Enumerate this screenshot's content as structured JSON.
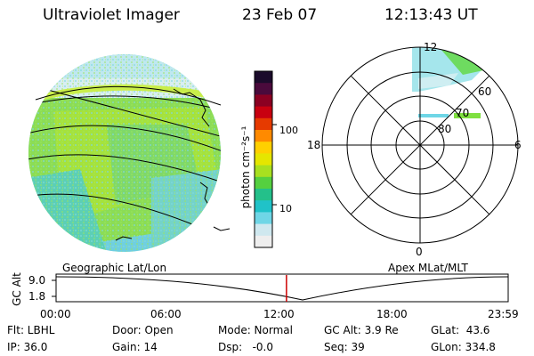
{
  "header": {
    "instrument": "Ultraviolet Imager",
    "date": "23 Feb 07",
    "time": "12:13:43 UT"
  },
  "colorbar": {
    "label": "photon cm⁻²s⁻¹",
    "ticks": [
      "100",
      "10"
    ],
    "colors": [
      "#1b0b2b",
      "#4a0a3c",
      "#8b0022",
      "#c80010",
      "#e63a00",
      "#ff8a00",
      "#ffd000",
      "#e5e600",
      "#a8e020",
      "#55d040",
      "#24c08a",
      "#20c2c8",
      "#6fd6e6",
      "#cfe8ef",
      "#eeeeee"
    ]
  },
  "polar": {
    "mlt_labels": [
      "12",
      "18",
      "6",
      "0"
    ],
    "mlat_labels": [
      "60",
      "70",
      "80"
    ]
  },
  "timeline": {
    "left_label": "Geographic Lat/Lon",
    "right_label": "Apex MLat/MLT",
    "y_axis_title": "GC Alt",
    "y_ticks": [
      "9.0",
      "1.8"
    ],
    "x_ticks": [
      "00:00",
      "06:00",
      "12:00",
      "18:00",
      "23:59"
    ],
    "current_time_hours": 12.23,
    "marker_color": "#cc0000"
  },
  "status": {
    "flt": "Flt: LBHL",
    "ip": "IP: 36.0",
    "door": "Door: Open",
    "gain": "Gain: 14",
    "mode": "Mode: Normal",
    "dsp": "Dsp:   -0.0",
    "gcalt": "GC Alt: 3.9 Re",
    "seq": "Seq: 39",
    "glat": "GLat:  43.6",
    "glon": "GLon: 334.8"
  }
}
